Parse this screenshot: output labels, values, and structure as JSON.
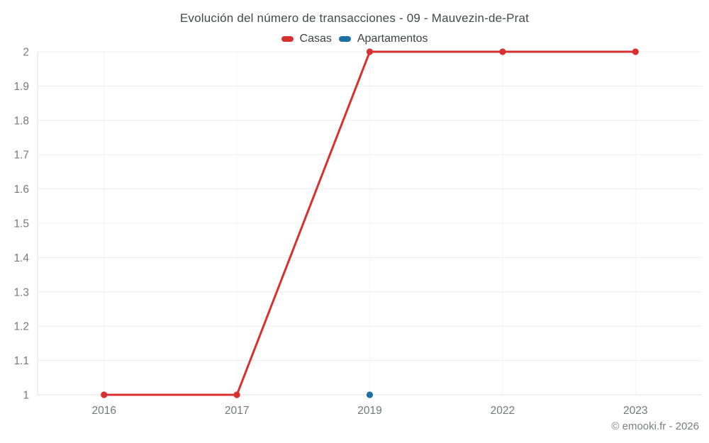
{
  "chart_data": {
    "type": "line",
    "title": "Evolución del número de transacciones - 09 - Mauvezin-de-Prat",
    "categories": [
      "2016",
      "2017",
      "2019",
      "2022",
      "2023"
    ],
    "series": [
      {
        "name": "Casas",
        "color": "#d7302f",
        "values": [
          1,
          1,
          2,
          2,
          2
        ]
      },
      {
        "name": "Apartamentos",
        "color": "#1c70a6",
        "values": [
          null,
          null,
          1,
          null,
          null
        ]
      }
    ],
    "xlabel": "",
    "ylabel": "",
    "ylim": [
      1,
      2
    ],
    "yticks": [
      1,
      1.1,
      1.2,
      1.3,
      1.4,
      1.5,
      1.6,
      1.7,
      1.8,
      1.9,
      2
    ],
    "grid": true,
    "legend_position": "top",
    "colors": {
      "axis": "#e1e1e1",
      "grid_horizontal": "#ededed",
      "grid_vertical": "#f3f3f3",
      "tick_text": "#75787b"
    }
  },
  "footer": {
    "copyright": "© emooki.fr - 2026"
  }
}
